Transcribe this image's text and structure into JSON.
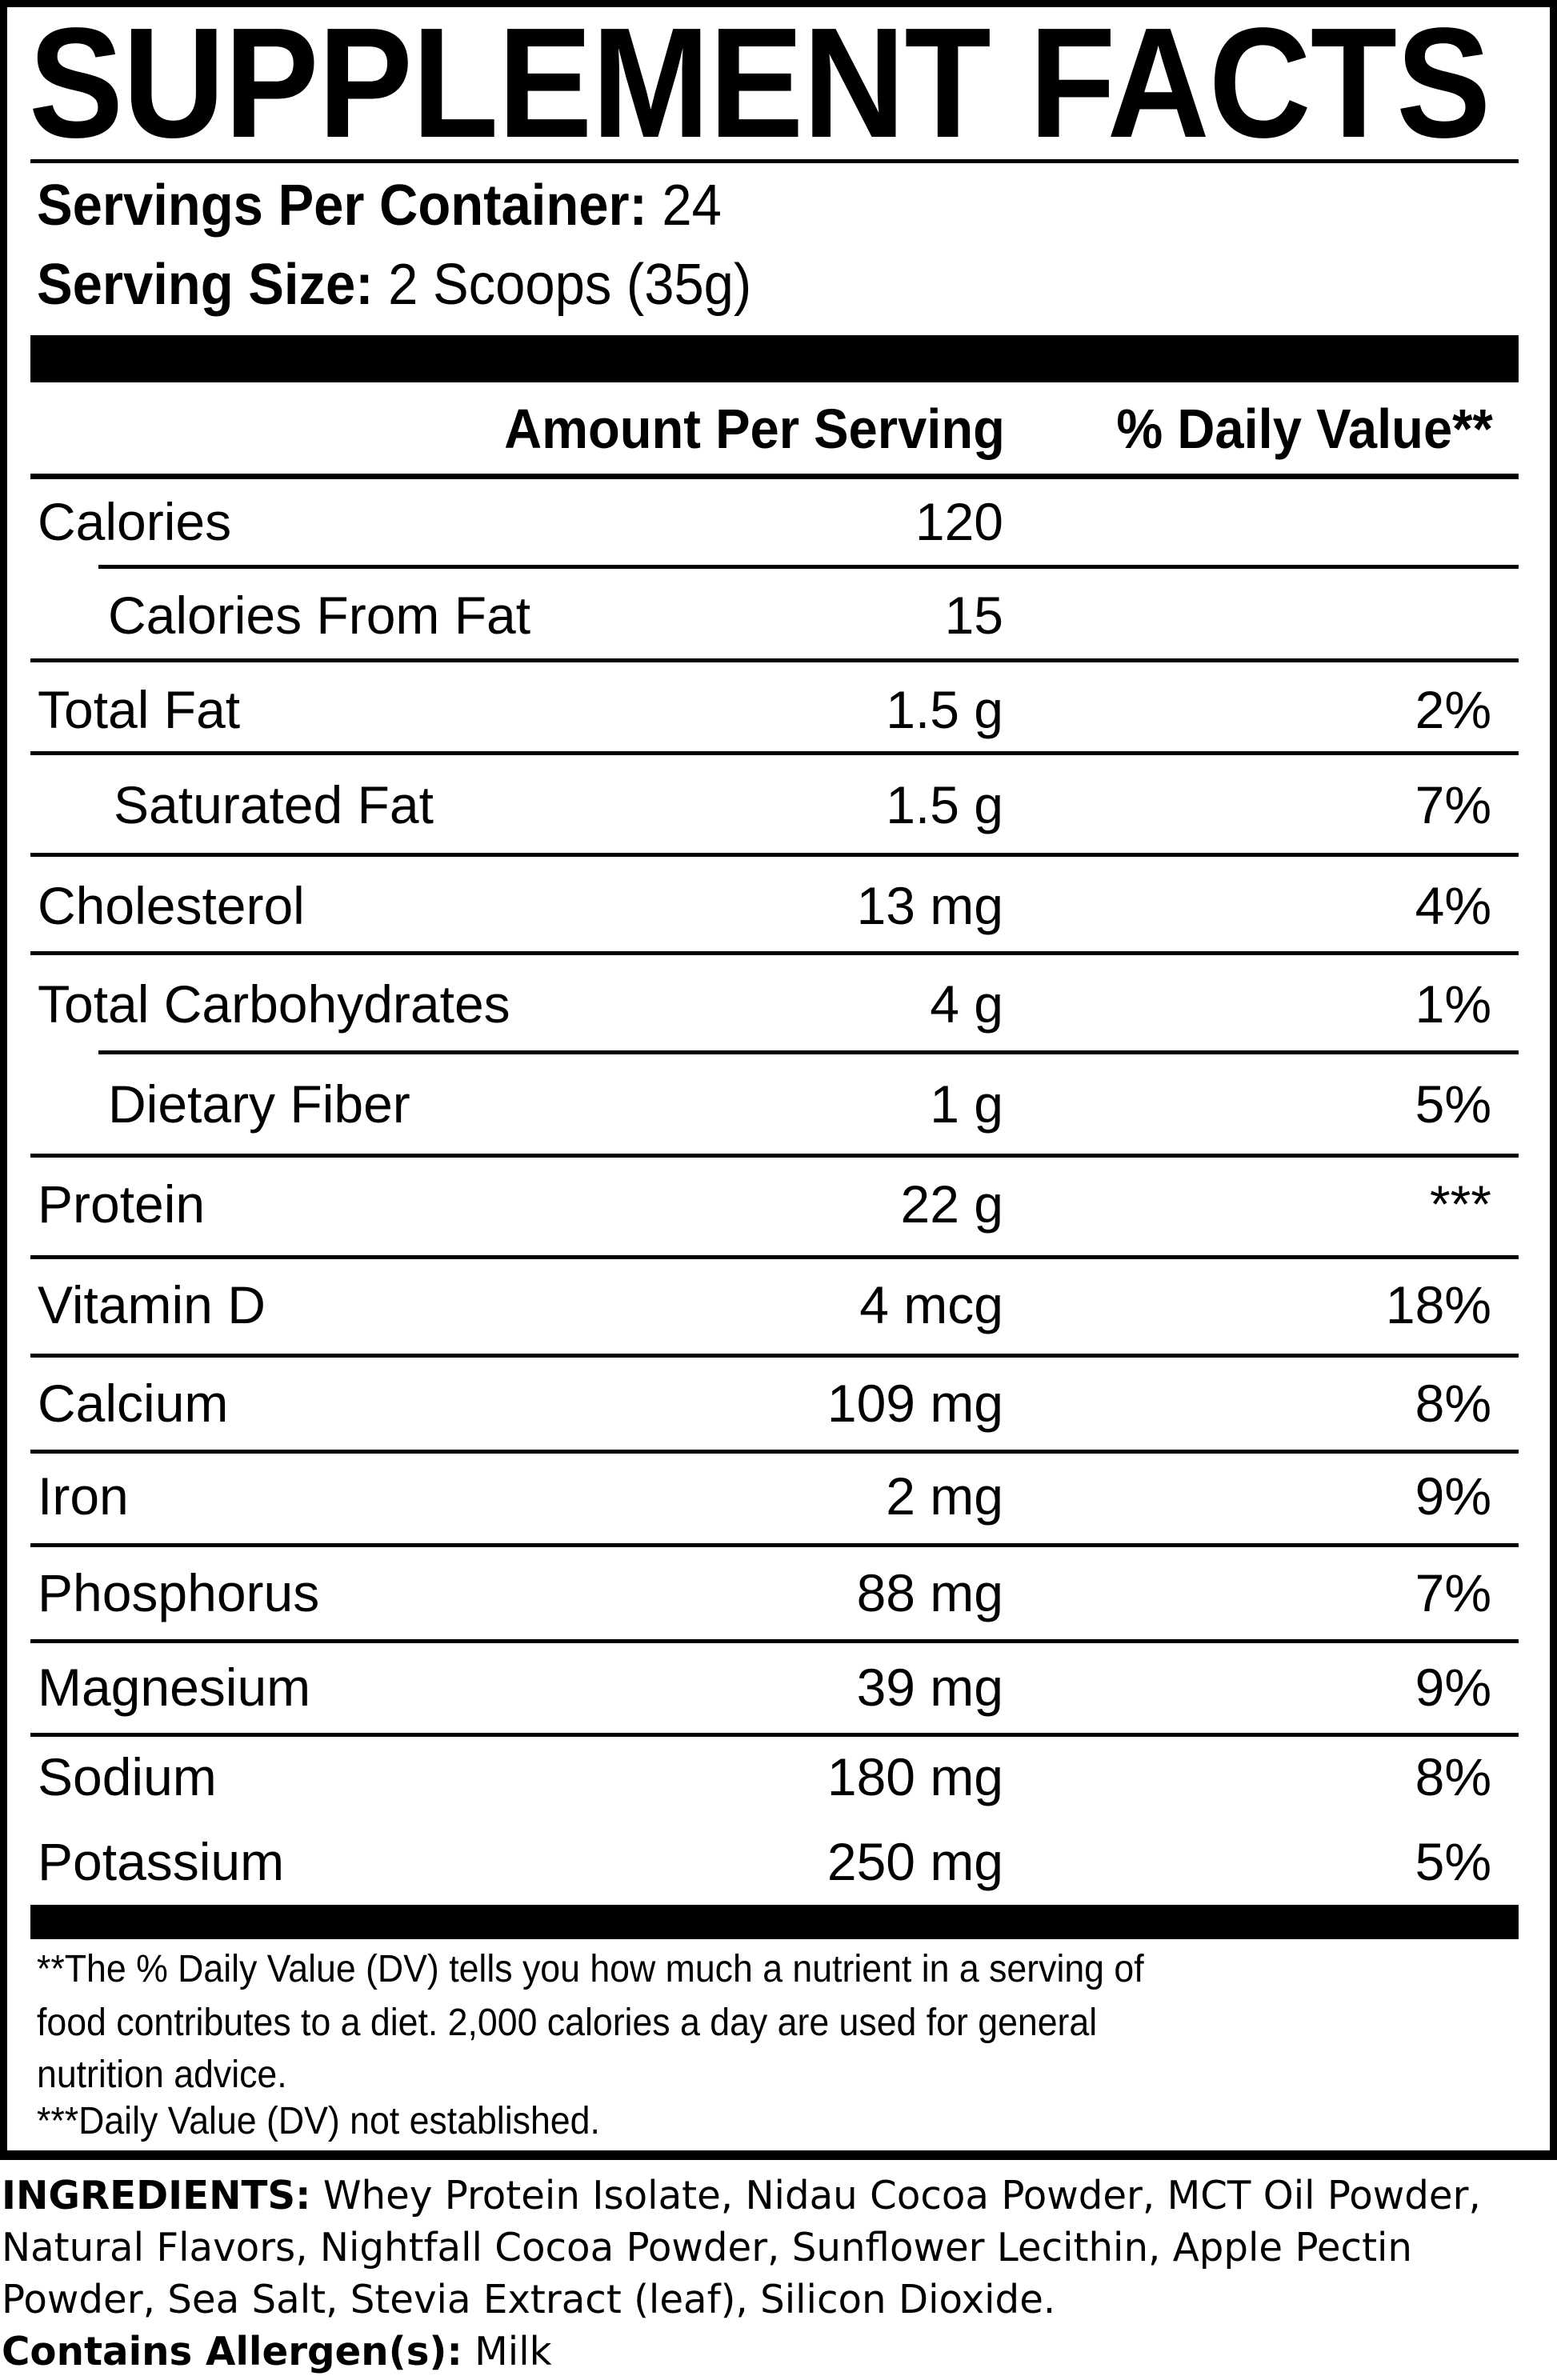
{
  "title": "SUPPLEMENT FACTS",
  "servings_per_container": {
    "label": "Servings Per Container:",
    "value": "24"
  },
  "serving_size": {
    "label": "Serving Size:",
    "value": "2 Scoops (35g)"
  },
  "columns": {
    "amount": "Amount Per Serving",
    "dv": "% Daily Value**"
  },
  "rows": [
    {
      "name": "Calories",
      "amount": "120",
      "dv": "",
      "indent": false
    },
    {
      "name": "Calories From Fat",
      "amount": "15",
      "dv": "",
      "indent": true
    },
    {
      "name": "Total Fat",
      "amount": "1.5 g",
      "dv": "2%",
      "indent": false
    },
    {
      "name": "Saturated Fat",
      "amount": "1.5 g",
      "dv": "7%",
      "indent": true
    },
    {
      "name": "Cholesterol",
      "amount": "13 mg",
      "dv": "4%",
      "indent": false
    },
    {
      "name": "Total Carbohydrates",
      "amount": "4 g",
      "dv": "1%",
      "indent": false
    },
    {
      "name": "Dietary Fiber",
      "amount": "1 g",
      "dv": "5%",
      "indent": true
    },
    {
      "name": "Protein",
      "amount": "22 g",
      "dv": "***",
      "indent": false
    },
    {
      "name": "Vitamin D",
      "amount": "4 mcg",
      "dv": "18%",
      "indent": false
    },
    {
      "name": "Calcium",
      "amount": "109 mg",
      "dv": "8%",
      "indent": false
    },
    {
      "name": "Iron",
      "amount": "2 mg",
      "dv": "9%",
      "indent": false
    },
    {
      "name": "Phosphorus",
      "amount": "88 mg",
      "dv": "7%",
      "indent": false
    },
    {
      "name": "Magnesium",
      "amount": "39 mg",
      "dv": "9%",
      "indent": false
    },
    {
      "name": "Sodium",
      "amount": "180 mg",
      "dv": "8%",
      "indent": false
    },
    {
      "name": "Potassium",
      "amount": "250 mg",
      "dv": "5%",
      "indent": false
    }
  ],
  "footnotes": [
    "**The % Daily Value (DV) tells you how much a nutrient in a serving of",
    "food contributes to a diet. 2,000 calories a day are used for general",
    "nutrition advice.",
    "***Daily Value (DV) not established."
  ],
  "ingredients": {
    "label": "INGREDIENTS:",
    "text": " Whey Protein Isolate, Nidau Cocoa Powder, MCT Oil Powder, Natural Flavors, Nightfall Cocoa Powder, Sunflower Lecithin, Apple Pectin Powder, Sea Salt, Stevia Extract (leaf), Silicon Dioxide."
  },
  "allergens": {
    "label": "Contains Allergen(s):",
    "value": " Milk"
  }
}
